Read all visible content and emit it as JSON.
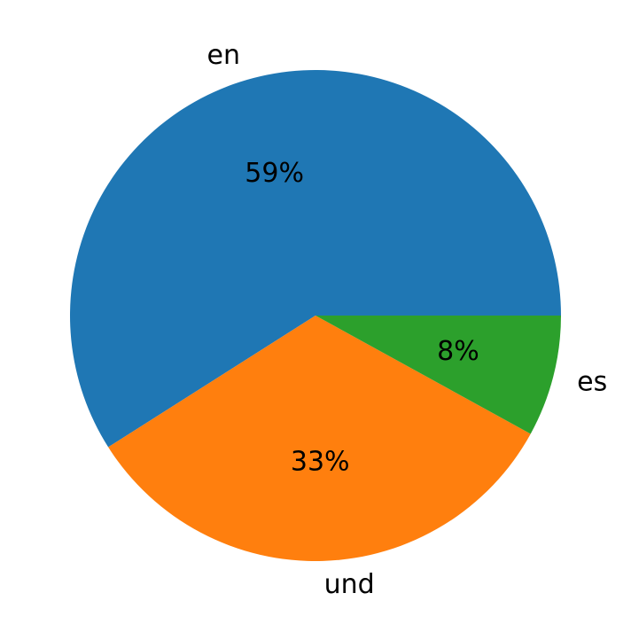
{
  "chart_data": {
    "type": "pie",
    "categories": [
      "en",
      "und",
      "es"
    ],
    "values": [
      59,
      33,
      8
    ],
    "value_labels": [
      "59%",
      "33%",
      "8%"
    ],
    "colors": [
      "#1f77b4",
      "#ff7f0e",
      "#2ca02c"
    ],
    "start_angle": 0
  }
}
